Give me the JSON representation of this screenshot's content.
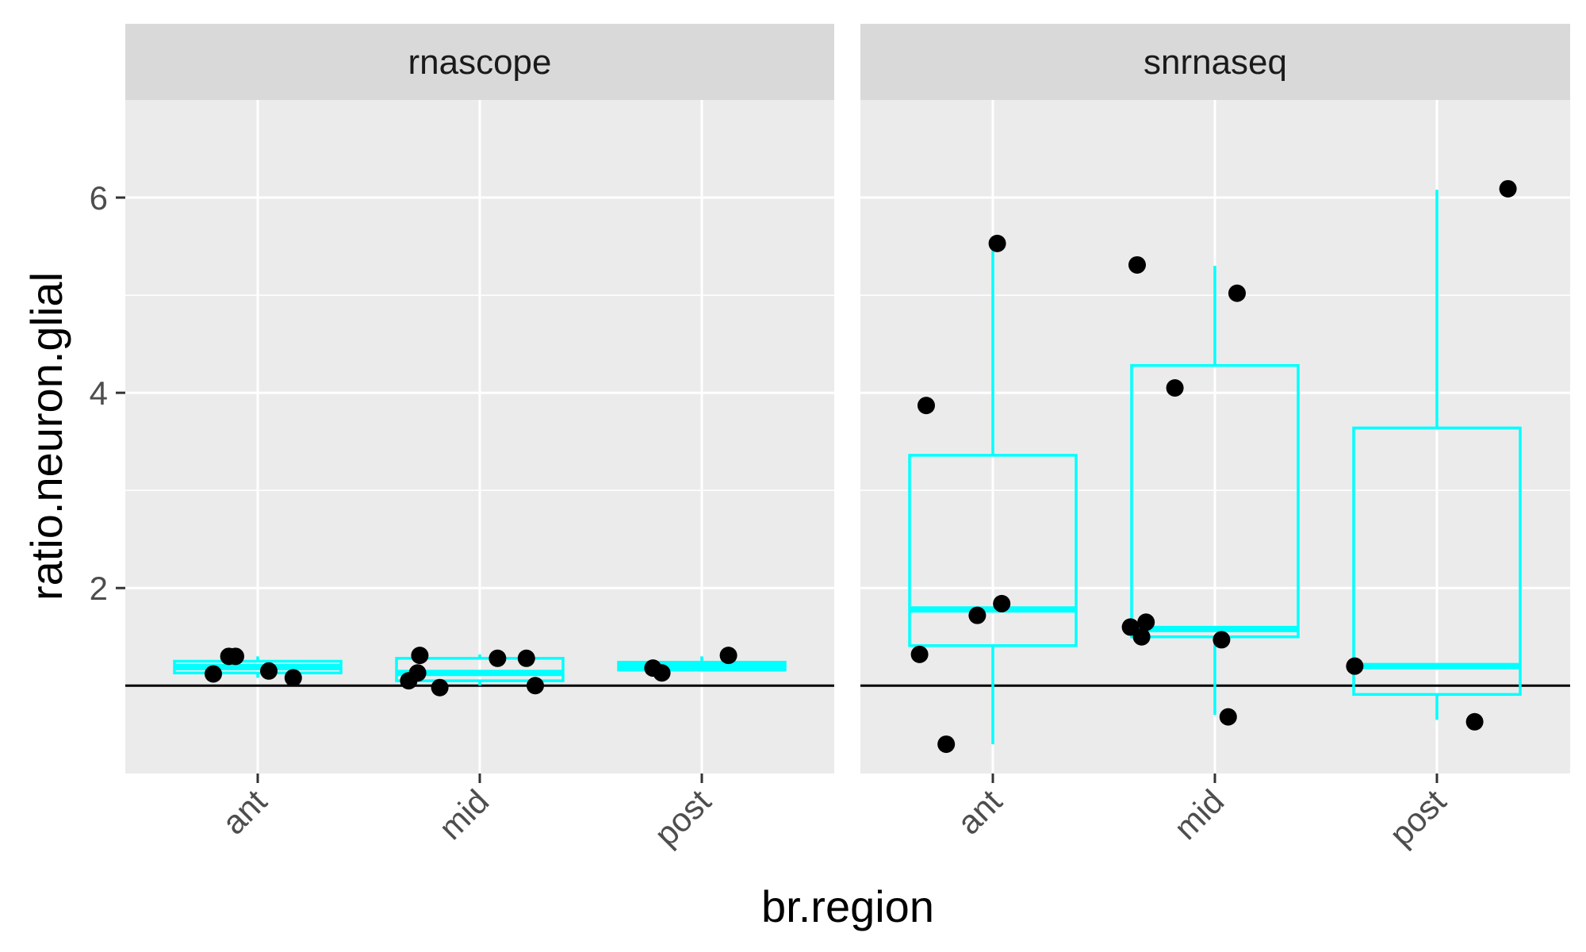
{
  "chart_data": {
    "type": "boxplot-facets",
    "xlabel": "br.region",
    "ylabel": "ratio.neuron.glial",
    "categories": [
      "ant",
      "mid",
      "post"
    ],
    "yticks": [
      2,
      4,
      6
    ],
    "ylim": [
      0.1,
      7.0
    ],
    "reference_line_y": 1.0,
    "colors": {
      "box": "#00FFFF",
      "point": "#000000",
      "panel_bg": "#EBEBEB",
      "strip_bg": "#D9D9D9",
      "grid": "#FFFFFF",
      "refline": "#000000"
    },
    "facets": [
      {
        "name": "rnascope",
        "boxes": [
          {
            "category": "ant",
            "min": 1.08,
            "q1": 1.13,
            "median": 1.19,
            "q3": 1.25,
            "max": 1.3
          },
          {
            "category": "mid",
            "min": 1.0,
            "q1": 1.05,
            "median": 1.13,
            "q3": 1.28,
            "max": 1.32
          },
          {
            "category": "post",
            "min": 1.15,
            "q1": 1.16,
            "median": 1.2,
            "q3": 1.24,
            "max": 1.3
          }
        ],
        "points": [
          {
            "category": "ant",
            "offset": -0.2,
            "y": 1.12
          },
          {
            "category": "ant",
            "offset": -0.13,
            "y": 1.3
          },
          {
            "category": "ant",
            "offset": -0.1,
            "y": 1.3
          },
          {
            "category": "ant",
            "offset": 0.05,
            "y": 1.15
          },
          {
            "category": "ant",
            "offset": 0.16,
            "y": 1.08
          },
          {
            "category": "mid",
            "offset": -0.32,
            "y": 1.05
          },
          {
            "category": "mid",
            "offset": -0.28,
            "y": 1.13
          },
          {
            "category": "mid",
            "offset": -0.27,
            "y": 1.31
          },
          {
            "category": "mid",
            "offset": -0.18,
            "y": 0.98
          },
          {
            "category": "mid",
            "offset": 0.08,
            "y": 1.28
          },
          {
            "category": "mid",
            "offset": 0.21,
            "y": 1.28
          },
          {
            "category": "mid",
            "offset": 0.25,
            "y": 1.0
          },
          {
            "category": "post",
            "offset": -0.22,
            "y": 1.18
          },
          {
            "category": "post",
            "offset": -0.18,
            "y": 1.13
          },
          {
            "category": "post",
            "offset": 0.12,
            "y": 1.31
          }
        ]
      },
      {
        "name": "snrnaseq",
        "boxes": [
          {
            "category": "ant",
            "min": 0.4,
            "q1": 1.41,
            "median": 1.78,
            "q3": 3.36,
            "max": 5.52
          },
          {
            "category": "mid",
            "min": 0.7,
            "q1": 1.5,
            "median": 1.58,
            "q3": 4.28,
            "max": 5.3
          },
          {
            "category": "post",
            "min": 0.65,
            "q1": 0.91,
            "median": 1.2,
            "q3": 3.64,
            "max": 6.08
          }
        ],
        "points": [
          {
            "category": "ant",
            "offset": -0.33,
            "y": 1.32
          },
          {
            "category": "ant",
            "offset": -0.3,
            "y": 3.87
          },
          {
            "category": "ant",
            "offset": -0.21,
            "y": 0.4
          },
          {
            "category": "ant",
            "offset": -0.07,
            "y": 1.72
          },
          {
            "category": "ant",
            "offset": 0.02,
            "y": 5.53
          },
          {
            "category": "ant",
            "offset": 0.04,
            "y": 1.84
          },
          {
            "category": "mid",
            "offset": -0.38,
            "y": 1.6
          },
          {
            "category": "mid",
            "offset": -0.35,
            "y": 5.31
          },
          {
            "category": "mid",
            "offset": -0.33,
            "y": 1.5
          },
          {
            "category": "mid",
            "offset": -0.31,
            "y": 1.65
          },
          {
            "category": "mid",
            "offset": -0.18,
            "y": 4.05
          },
          {
            "category": "mid",
            "offset": 0.03,
            "y": 1.47
          },
          {
            "category": "mid",
            "offset": 0.06,
            "y": 0.68
          },
          {
            "category": "mid",
            "offset": 0.1,
            "y": 5.02
          },
          {
            "category": "post",
            "offset": -0.37,
            "y": 1.2
          },
          {
            "category": "post",
            "offset": 0.17,
            "y": 0.63
          },
          {
            "category": "post",
            "offset": 0.32,
            "y": 6.09
          }
        ]
      }
    ]
  }
}
